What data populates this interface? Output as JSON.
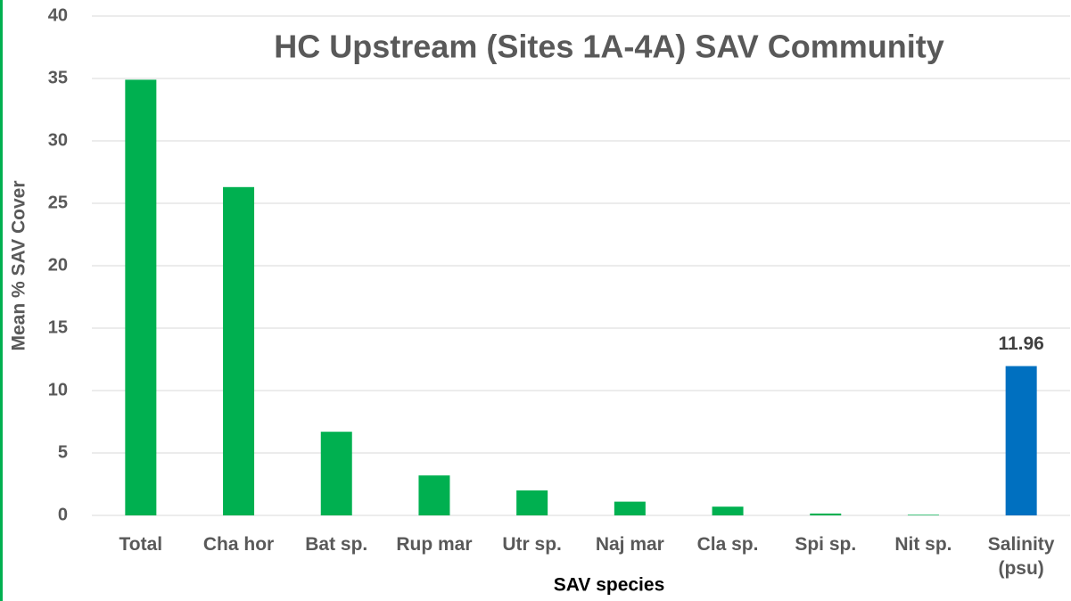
{
  "chart_data": {
    "type": "bar",
    "title": "HC Upstream (Sites 1A-4A) SAV Community",
    "xlabel": "SAV species",
    "ylabel": "Mean % SAV Cover",
    "categories": [
      "Total",
      "Cha hor",
      "Bat sp.",
      "Rup mar",
      "Utr sp.",
      "Naj mar",
      "Cla sp.",
      "Spi sp.",
      "Nit sp.",
      "Salinity (psu)"
    ],
    "values": [
      34.9,
      26.3,
      6.7,
      3.2,
      2.0,
      1.1,
      0.7,
      0.15,
      0.05,
      11.96
    ],
    "value_labels": [
      null,
      null,
      null,
      null,
      null,
      null,
      null,
      null,
      null,
      "11.96"
    ],
    "colors": [
      "#00b050",
      "#00b050",
      "#00b050",
      "#00b050",
      "#00b050",
      "#00b050",
      "#00b050",
      "#00b050",
      "#00b050",
      "#0070c0"
    ],
    "ylim": [
      0,
      40
    ],
    "yticks": [
      0,
      5,
      10,
      15,
      20,
      25,
      30,
      35,
      40
    ],
    "grid": true
  }
}
